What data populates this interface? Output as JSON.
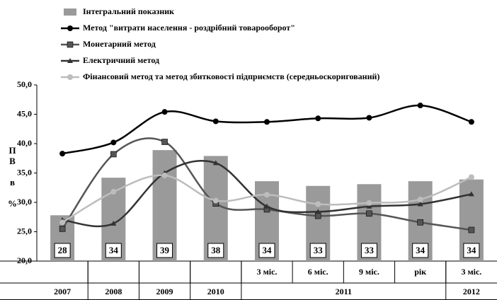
{
  "chart_data": {
    "type": "bar_line",
    "y_label": "ПВ в %",
    "categories": [
      null,
      null,
      null,
      null,
      "3 міс.",
      "6 міс.",
      "9 міс.",
      "рік",
      "3 міс."
    ],
    "groups": [
      {
        "name": "2007",
        "size": 1
      },
      {
        "name": "2008",
        "size": 1
      },
      {
        "name": "2009",
        "size": 1
      },
      {
        "name": "2010",
        "size": 1
      },
      {
        "name": "2011",
        "size": 4
      },
      {
        "name": "2012",
        "size": 1
      }
    ],
    "ylim": [
      20,
      50
    ],
    "yticks": [
      {
        "value": 20,
        "label": "20,0"
      },
      {
        "value": 25,
        "label": "25,0"
      },
      {
        "value": 30,
        "label": "30,0"
      },
      {
        "value": 35,
        "label": "35,0"
      },
      {
        "value": 40,
        "label": "40,0"
      },
      {
        "value": 45,
        "label": "45,0"
      },
      {
        "value": 50,
        "label": "50,0"
      }
    ],
    "series": [
      {
        "name": "Інтегральний показник",
        "kind": "bar",
        "color": "#9a9a9a",
        "values": [
          27.8,
          34.2,
          38.9,
          37.9,
          33.6,
          32.8,
          33.1,
          33.6,
          33.9
        ],
        "value_labels": [
          "28",
          "34",
          "39",
          "38",
          "34",
          "33",
          "33",
          "34",
          "34"
        ]
      },
      {
        "name": "Метод \"витрати населення - роздрібний товарооборот\"",
        "kind": "line",
        "color": "#000000",
        "marker": "circle",
        "values": [
          38.3,
          40.2,
          45.4,
          43.8,
          43.7,
          44.3,
          44.4,
          46.5,
          43.7
        ]
      },
      {
        "name": "Монетарний метод",
        "kind": "line",
        "color": "#555555",
        "marker": "square",
        "values": [
          25.5,
          38.2,
          40.3,
          29.8,
          28.8,
          27.7,
          28.1,
          26.6,
          25.3
        ]
      },
      {
        "name": "Електричний метод",
        "kind": "line",
        "color": "#333333",
        "marker": "triangle",
        "values": [
          27.0,
          26.4,
          35.0,
          36.7,
          29.3,
          28.4,
          29.3,
          29.7,
          31.4
        ]
      },
      {
        "name": "Фінансовий метод та метод збитковості підприємств (середньоскоригований)",
        "kind": "line",
        "color": "#bdbdbd",
        "marker": "circle",
        "values": [
          26.6,
          31.8,
          34.6,
          30.3,
          31.3,
          29.7,
          29.9,
          30.5,
          34.3
        ]
      }
    ]
  }
}
